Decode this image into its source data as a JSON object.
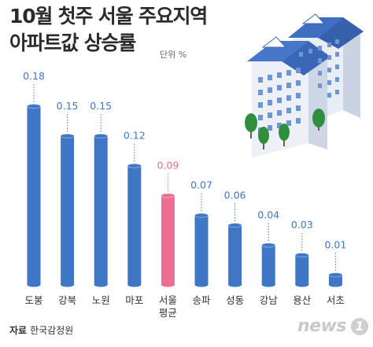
{
  "title_line1": "10월 첫주 서울 주요지역",
  "title_line2": "아파트값 상승률",
  "unit": "단위 %",
  "source_label": "자료",
  "source_name": "한국감정원",
  "logo_text": "news",
  "logo_badge": "1",
  "colors": {
    "bar": "#3f77c6",
    "highlight": "#ee6d92",
    "value_text": "#3f77c6",
    "highlight_text": "#ee6d92"
  },
  "chart_data": {
    "type": "bar",
    "categories": [
      "도봉",
      "강북",
      "노원",
      "마포",
      "서울\n평균",
      "송파",
      "성동",
      "강남",
      "용산",
      "서초"
    ],
    "values": [
      0.18,
      0.15,
      0.15,
      0.12,
      0.09,
      0.07,
      0.06,
      0.04,
      0.03,
      0.01
    ],
    "value_labels": [
      "0.18",
      "0.15",
      "0.15",
      "0.12",
      "0.09",
      "0.07",
      "0.06",
      "0.04",
      "0.03",
      "0.01"
    ],
    "highlight_index": 4,
    "title": "10월 첫주 서울 주요지역 아파트값 상승률",
    "xlabel": "",
    "ylabel": "",
    "ylim": [
      0,
      0.18
    ],
    "grid": false,
    "legend": "none"
  }
}
